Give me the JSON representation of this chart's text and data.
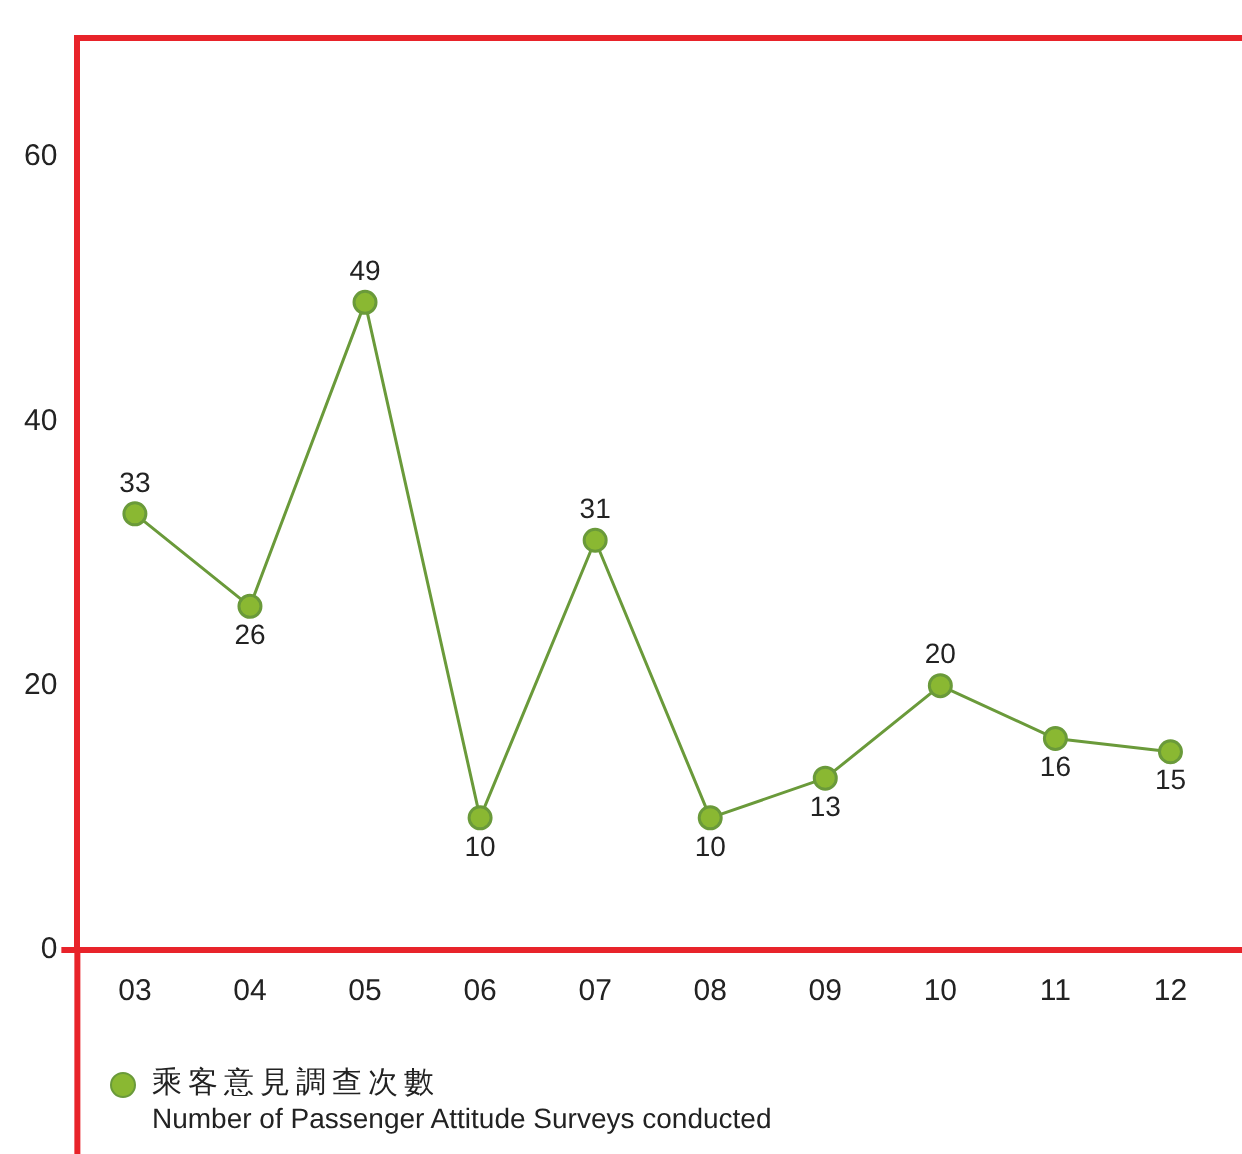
{
  "chart_data": {
    "type": "line",
    "categories": [
      "03",
      "04",
      "05",
      "06",
      "07",
      "08",
      "09",
      "10",
      "11",
      "12"
    ],
    "series": [
      {
        "name": "乘客意見調查次數\nNumber of Passenger Attitude Surveys conducted",
        "color": "#6a9a3a",
        "values": [
          33,
          26,
          49,
          10,
          31,
          10,
          13,
          20,
          16,
          15
        ]
      }
    ],
    "ylim": [
      0,
      69
    ],
    "yticks": [
      0,
      20,
      40,
      60
    ],
    "grid": false,
    "legend": "bottom left",
    "marker": "circle",
    "line_style": "solid",
    "data_labels": true
  }
}
